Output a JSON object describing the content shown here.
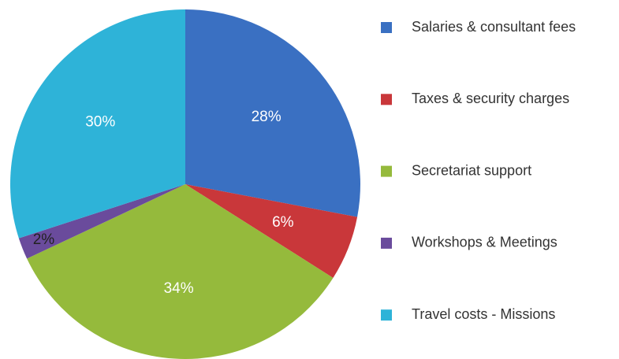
{
  "chart_data": {
    "type": "pie",
    "categories": [
      "Salaries & consultant fees",
      "Taxes & security charges",
      "Secretariat support",
      "Workshops & Meetings",
      "Travel costs - Missions"
    ],
    "values": [
      28,
      6,
      34,
      2,
      30
    ],
    "value_labels": [
      "28%",
      "6%",
      "34%",
      "2%",
      "30%"
    ],
    "colors": [
      "#3a70c2",
      "#c9373a",
      "#95ba3c",
      "#6a4b9c",
      "#2eb3d8"
    ],
    "legend": "right"
  }
}
